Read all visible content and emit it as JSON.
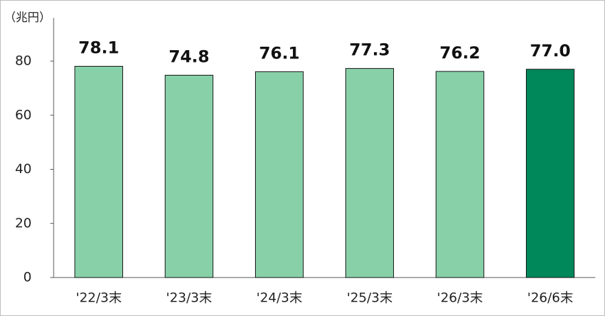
{
  "chart_data": {
    "type": "bar",
    "y_label": "（兆円）",
    "categories": [
      "'22/3末",
      "'23/3末",
      "'24/3末",
      "'25/3末",
      "'26/3末",
      "'26/6末"
    ],
    "values": [
      78.1,
      74.8,
      76.1,
      77.3,
      76.2,
      77.0
    ],
    "value_labels": [
      "78.1",
      "74.8",
      "76.1",
      "77.3",
      "76.2",
      "77.0"
    ],
    "colors": [
      "#88d0a8",
      "#88d0a8",
      "#88d0a8",
      "#88d0a8",
      "#88d0a8",
      "#00875a"
    ],
    "ylim": [
      0,
      96
    ],
    "yticks": [
      0,
      20,
      40,
      60,
      80
    ],
    "grid": false
  }
}
